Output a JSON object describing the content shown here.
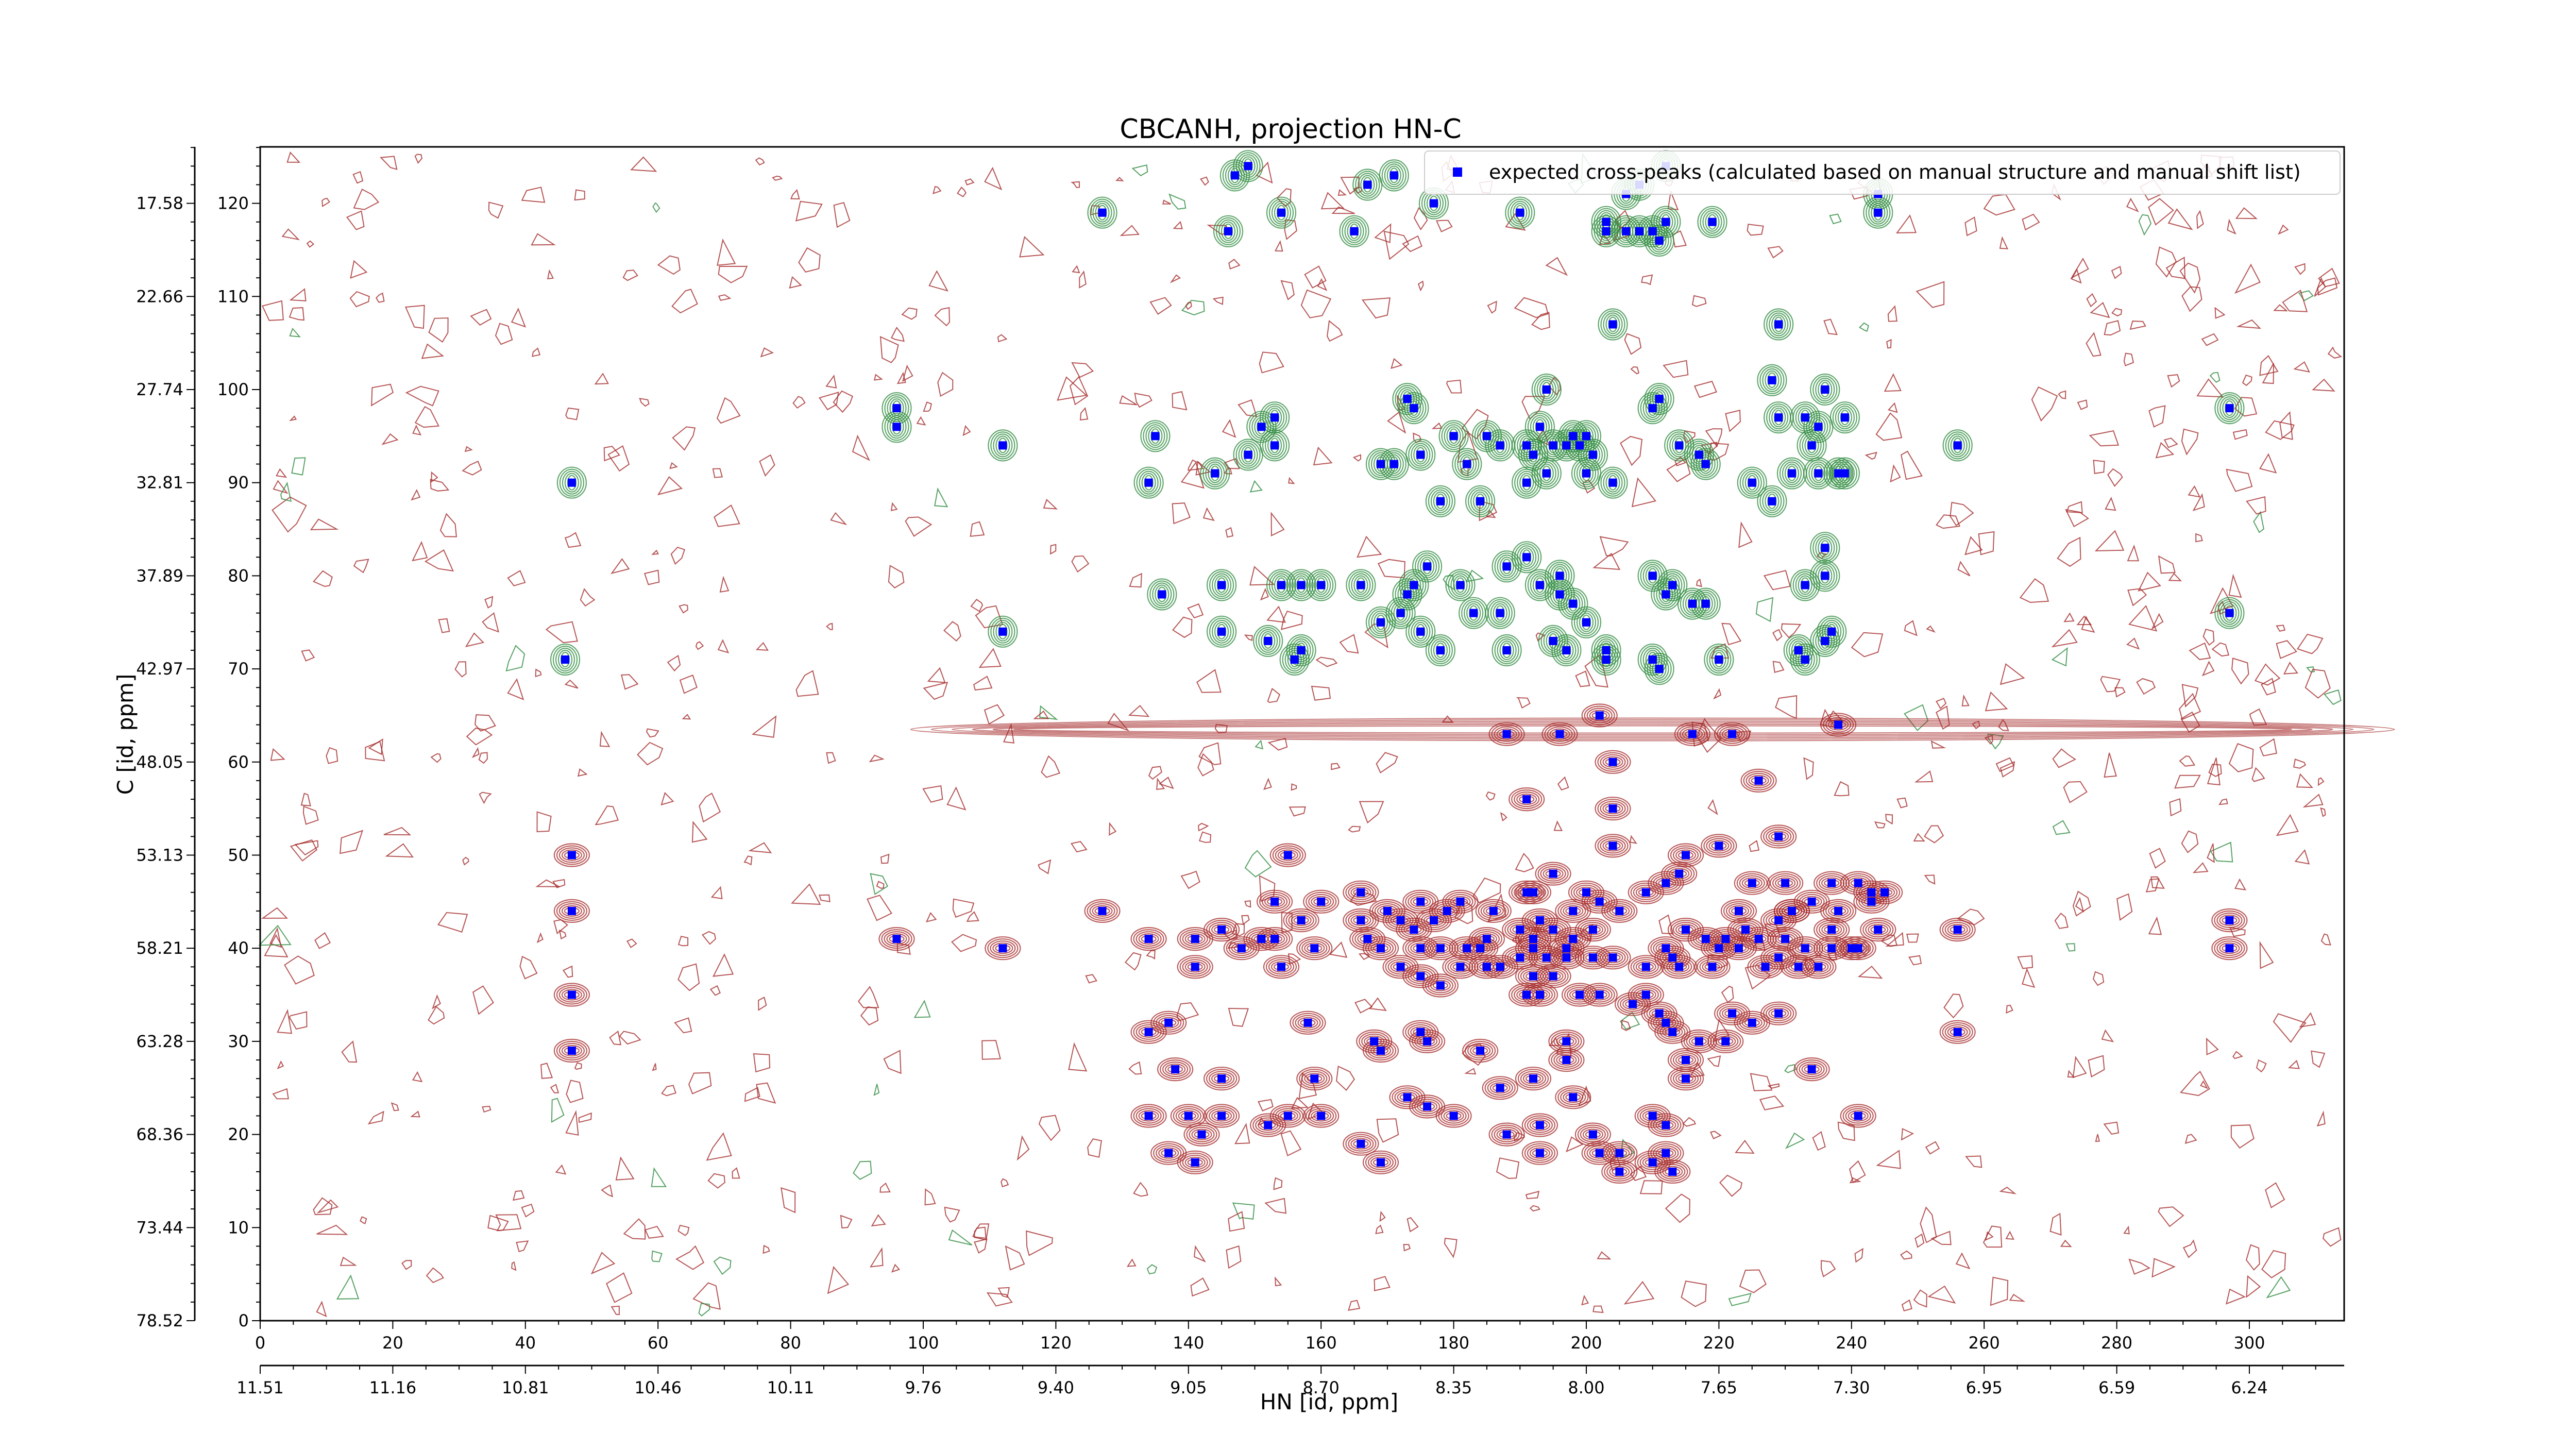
{
  "chart_data": {
    "type": "scatter",
    "title": "CBCANH, projection HN-C",
    "xlabel_bottom": "HN [id, ppm]",
    "ylabel": "C [id, ppm]",
    "x_primary_ticks": [
      0,
      20,
      40,
      60,
      80,
      100,
      120,
      140,
      160,
      180,
      200,
      220,
      240,
      260,
      280,
      300
    ],
    "x_primary_range": [
      0,
      314
    ],
    "x_ppm_tick_labels": [
      "11.51",
      "11.16",
      "10.81",
      "10.46",
      "10.11",
      "9.76",
      "9.40",
      "9.05",
      "8.70",
      "8.35",
      "8.00",
      "7.65",
      "7.30",
      "6.95",
      "6.59",
      "6.24"
    ],
    "y_primary_ticks": [
      0,
      10,
      20,
      30,
      40,
      50,
      60,
      70,
      80,
      90,
      100,
      110,
      120
    ],
    "y_primary_range": [
      0,
      126
    ],
    "y_ppm_tick_labels": [
      "78.52",
      "73.44",
      "68.36",
      "63.28",
      "58.21",
      "53.13",
      "48.05",
      "42.97",
      "37.89",
      "32.81",
      "27.74",
      "22.66",
      "17.58"
    ],
    "legend": {
      "placement": "top-right",
      "label": "expected cross-peaks (calculated based on manual structure and manual shift list)"
    },
    "grid": false,
    "colors": {
      "peak_marker": "#0000ff",
      "positive_contour": "#a52a2a",
      "negative_contour": "#2e8b3e"
    },
    "series": [
      {
        "name": "expected cross-peaks (calculated based on manual structure and manual shift list)",
        "points": [
          [
            47,
            90
          ],
          [
            46,
            71
          ],
          [
            47,
            50
          ],
          [
            47,
            44
          ],
          [
            47,
            35
          ],
          [
            47,
            29
          ],
          [
            96,
            98
          ],
          [
            96,
            96
          ],
          [
            96,
            41
          ],
          [
            112,
            94
          ],
          [
            112,
            74
          ],
          [
            112,
            40
          ],
          [
            127,
            119
          ],
          [
            127,
            44
          ],
          [
            134,
            90
          ],
          [
            134,
            41
          ],
          [
            135,
            95
          ],
          [
            136,
            78
          ],
          [
            137,
            32
          ],
          [
            134,
            31
          ],
          [
            134,
            22
          ],
          [
            137,
            18
          ],
          [
            138,
            27
          ],
          [
            140,
            22
          ],
          [
            141,
            38
          ],
          [
            141,
            41
          ],
          [
            142,
            20
          ],
          [
            141,
            17
          ],
          [
            144,
            91
          ],
          [
            145,
            79
          ],
          [
            145,
            74
          ],
          [
            145,
            42
          ],
          [
            145,
            26
          ],
          [
            145,
            22
          ],
          [
            146,
            117
          ],
          [
            147,
            123
          ],
          [
            148,
            40
          ],
          [
            149,
            124
          ],
          [
            149,
            93
          ],
          [
            151,
            41
          ],
          [
            151,
            96
          ],
          [
            152,
            73
          ],
          [
            153,
            94
          ],
          [
            153,
            97
          ],
          [
            153,
            41
          ],
          [
            153,
            45
          ],
          [
            152,
            21
          ],
          [
            154,
            119
          ],
          [
            154,
            38
          ],
          [
            154,
            79
          ],
          [
            155,
            22
          ],
          [
            155,
            50
          ],
          [
            156,
            71
          ],
          [
            157,
            72
          ],
          [
            157,
            79
          ],
          [
            157,
            43
          ],
          [
            158,
            32
          ],
          [
            159,
            40
          ],
          [
            159,
            26
          ],
          [
            160,
            45
          ],
          [
            160,
            22
          ],
          [
            160,
            79
          ],
          [
            165,
            117
          ],
          [
            166,
            46
          ],
          [
            166,
            43
          ],
          [
            166,
            19
          ],
          [
            166,
            79
          ],
          [
            167,
            122
          ],
          [
            167,
            41
          ],
          [
            168,
            30
          ],
          [
            169,
            29
          ],
          [
            169,
            75
          ],
          [
            169,
            92
          ],
          [
            169,
            40
          ],
          [
            169,
            17
          ],
          [
            170,
            44
          ],
          [
            171,
            123
          ],
          [
            171,
            92
          ],
          [
            172,
            38
          ],
          [
            172,
            76
          ],
          [
            172,
            43
          ],
          [
            173,
            99
          ],
          [
            173,
            78
          ],
          [
            173,
            24
          ],
          [
            174,
            79
          ],
          [
            174,
            98
          ],
          [
            174,
            42
          ],
          [
            175,
            93
          ],
          [
            175,
            40
          ],
          [
            175,
            31
          ],
          [
            175,
            45
          ],
          [
            175,
            74
          ],
          [
            175,
            37
          ],
          [
            176,
            81
          ],
          [
            176,
            23
          ],
          [
            176,
            30
          ],
          [
            177,
            120
          ],
          [
            177,
            43
          ],
          [
            178,
            40
          ],
          [
            178,
            36
          ],
          [
            178,
            88
          ],
          [
            178,
            72
          ],
          [
            179,
            44
          ],
          [
            180,
            22
          ],
          [
            180,
            95
          ],
          [
            181,
            79
          ],
          [
            181,
            45
          ],
          [
            181,
            38
          ],
          [
            182,
            40
          ],
          [
            182,
            92
          ],
          [
            183,
            76
          ],
          [
            184,
            29
          ],
          [
            184,
            88
          ],
          [
            184,
            40
          ],
          [
            185,
            95
          ],
          [
            185,
            41
          ],
          [
            185,
            38
          ],
          [
            186,
            44
          ],
          [
            187,
            94
          ],
          [
            187,
            38
          ],
          [
            187,
            25
          ],
          [
            187,
            76
          ],
          [
            188,
            81
          ],
          [
            188,
            20
          ],
          [
            188,
            72
          ],
          [
            188,
            63
          ],
          [
            190,
            119
          ],
          [
            190,
            42
          ],
          [
            190,
            39
          ],
          [
            191,
            82
          ],
          [
            191,
            56
          ],
          [
            191,
            35
          ],
          [
            191,
            46
          ],
          [
            191,
            90
          ],
          [
            191,
            94
          ],
          [
            192,
            46
          ],
          [
            192,
            40
          ],
          [
            192,
            93
          ],
          [
            192,
            41
          ],
          [
            192,
            37
          ],
          [
            192,
            26
          ],
          [
            193,
            79
          ],
          [
            193,
            35
          ],
          [
            193,
            96
          ],
          [
            193,
            43
          ],
          [
            193,
            21
          ],
          [
            193,
            18
          ],
          [
            194,
            100
          ],
          [
            194,
            91
          ],
          [
            194,
            39
          ],
          [
            195,
            73
          ],
          [
            195,
            94
          ],
          [
            195,
            48
          ],
          [
            195,
            42
          ],
          [
            195,
            37
          ],
          [
            196,
            80
          ],
          [
            196,
            63
          ],
          [
            196,
            78
          ],
          [
            197,
            94
          ],
          [
            197,
            39
          ],
          [
            197,
            40
          ],
          [
            197,
            30
          ],
          [
            197,
            28
          ],
          [
            197,
            72
          ],
          [
            198,
            95
          ],
          [
            198,
            44
          ],
          [
            198,
            41
          ],
          [
            198,
            77
          ],
          [
            198,
            24
          ],
          [
            199,
            94
          ],
          [
            199,
            35
          ],
          [
            200,
            75
          ],
          [
            200,
            46
          ],
          [
            200,
            95
          ],
          [
            200,
            91
          ],
          [
            201,
            93
          ],
          [
            201,
            42
          ],
          [
            201,
            20
          ],
          [
            201,
            39
          ],
          [
            202,
            18
          ],
          [
            202,
            65
          ],
          [
            202,
            35
          ],
          [
            202,
            45
          ],
          [
            203,
            72
          ],
          [
            203,
            71
          ],
          [
            203,
            117
          ],
          [
            203,
            118
          ],
          [
            204,
            107
          ],
          [
            204,
            90
          ],
          [
            204,
            51
          ],
          [
            204,
            55
          ],
          [
            204,
            60
          ],
          [
            204,
            39
          ],
          [
            205,
            44
          ],
          [
            205,
            18
          ],
          [
            205,
            16
          ],
          [
            206,
            117
          ],
          [
            206,
            121
          ],
          [
            207,
            34
          ],
          [
            208,
            122
          ],
          [
            208,
            117
          ],
          [
            209,
            38
          ],
          [
            209,
            35
          ],
          [
            209,
            46
          ],
          [
            210,
            117
          ],
          [
            210,
            80
          ],
          [
            210,
            98
          ],
          [
            210,
            22
          ],
          [
            210,
            71
          ],
          [
            210,
            17
          ],
          [
            211,
            99
          ],
          [
            211,
            70
          ],
          [
            211,
            116
          ],
          [
            211,
            33
          ],
          [
            212,
            124
          ],
          [
            212,
            118
          ],
          [
            212,
            78
          ],
          [
            212,
            47
          ],
          [
            212,
            40
          ],
          [
            212,
            32
          ],
          [
            212,
            21
          ],
          [
            212,
            18
          ],
          [
            213,
            79
          ],
          [
            213,
            39
          ],
          [
            213,
            31
          ],
          [
            213,
            16
          ],
          [
            214,
            94
          ],
          [
            214,
            48
          ],
          [
            214,
            38
          ],
          [
            215,
            50
          ],
          [
            215,
            42
          ],
          [
            215,
            28
          ],
          [
            215,
            26
          ],
          [
            216,
            77
          ],
          [
            216,
            63
          ],
          [
            217,
            93
          ],
          [
            217,
            30
          ],
          [
            218,
            92
          ],
          [
            218,
            77
          ],
          [
            218,
            41
          ],
          [
            219,
            38
          ],
          [
            219,
            118
          ],
          [
            220,
            51
          ],
          [
            220,
            71
          ],
          [
            220,
            40
          ],
          [
            221,
            41
          ],
          [
            221,
            30
          ],
          [
            222,
            63
          ],
          [
            222,
            33
          ],
          [
            223,
            40
          ],
          [
            223,
            44
          ],
          [
            224,
            42
          ],
          [
            225,
            90
          ],
          [
            225,
            47
          ],
          [
            225,
            32
          ],
          [
            226,
            58
          ],
          [
            226,
            41
          ],
          [
            227,
            38
          ],
          [
            228,
            88
          ],
          [
            228,
            101
          ],
          [
            229,
            97
          ],
          [
            229,
            107
          ],
          [
            229,
            52
          ],
          [
            229,
            39
          ],
          [
            229,
            43
          ],
          [
            229,
            33
          ],
          [
            230,
            47
          ],
          [
            230,
            41
          ],
          [
            231,
            44
          ],
          [
            231,
            91
          ],
          [
            231,
            44
          ],
          [
            232,
            72
          ],
          [
            232,
            38
          ],
          [
            233,
            79
          ],
          [
            233,
            97
          ],
          [
            233,
            71
          ],
          [
            233,
            40
          ],
          [
            234,
            94
          ],
          [
            234,
            45
          ],
          [
            234,
            27
          ],
          [
            235,
            96
          ],
          [
            235,
            91
          ],
          [
            235,
            38
          ],
          [
            236,
            73
          ],
          [
            236,
            83
          ],
          [
            236,
            80
          ],
          [
            236,
            100
          ],
          [
            237,
            74
          ],
          [
            237,
            47
          ],
          [
            237,
            42
          ],
          [
            237,
            40
          ],
          [
            238,
            91
          ],
          [
            238,
            44
          ],
          [
            238,
            64
          ],
          [
            239,
            91
          ],
          [
            239,
            97
          ],
          [
            240,
            40
          ],
          [
            241,
            47
          ],
          [
            241,
            40
          ],
          [
            241,
            22
          ],
          [
            243,
            46
          ],
          [
            243,
            45
          ],
          [
            244,
            121
          ],
          [
            244,
            119
          ],
          [
            244,
            42
          ],
          [
            245,
            46
          ],
          [
            256,
            94
          ],
          [
            256,
            42
          ],
          [
            256,
            31
          ],
          [
            297,
            98
          ],
          [
            297,
            76
          ],
          [
            297,
            43
          ],
          [
            297,
            40
          ]
        ]
      }
    ]
  }
}
